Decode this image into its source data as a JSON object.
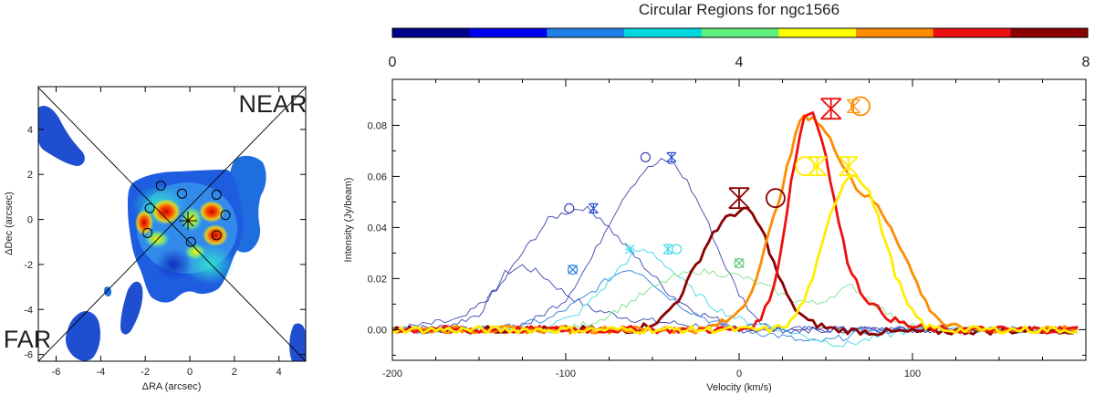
{
  "chart_data": [
    {
      "type": "heatmap",
      "xlabel": "ΔRA (arcsec)",
      "ylabel": "ΔDec (arcsec)",
      "xlim": [
        -6.8,
        5.2
      ],
      "ylim": [
        -6.3,
        5.9
      ],
      "xticks": [
        "-6",
        "-4",
        "-2",
        "0",
        "2",
        "4"
      ],
      "xtick_values": [
        -6,
        -4,
        -2,
        0,
        2,
        4
      ],
      "yticks": [
        "-6",
        "-4",
        "-2",
        "0",
        "2",
        "4"
      ],
      "ytick_values": [
        -6,
        -4,
        -2,
        0,
        2,
        4
      ],
      "annotations": {
        "near": "NEAR",
        "far": "FAR"
      },
      "apertures": [
        {
          "x": -1.3,
          "y": 1.5
        },
        {
          "x": -0.35,
          "y": 1.15
        },
        {
          "x": 1.2,
          "y": 1.1
        },
        {
          "x": -1.8,
          "y": 0.5
        },
        {
          "x": 1.6,
          "y": 0.2
        },
        {
          "x": -1.9,
          "y": -0.6
        },
        {
          "x": 0.05,
          "y": -1.0
        },
        {
          "x": 1.2,
          "y": -0.7
        }
      ]
    },
    {
      "type": "line",
      "title": "Circular Regions for ngc1566",
      "colorbar": {
        "labels": [
          "0",
          "4",
          "8"
        ],
        "min": 0,
        "max": 8,
        "colors": [
          "#00008b",
          "#0000ee",
          "#1e7fe6",
          "#00d8e0",
          "#5ef07a",
          "#ffff00",
          "#ff8c00",
          "#ee1010",
          "#8b0000"
        ]
      },
      "xlabel": "Velocity (km/s)",
      "ylabel": "Intensity (Jy/beam)",
      "xlim": [
        -200,
        200
      ],
      "ylim": [
        -0.012,
        0.098
      ],
      "xticks": [
        "-200",
        "-100",
        "0",
        "100"
      ],
      "xtick_values": [
        -200,
        -100,
        0,
        100
      ],
      "yticks": [
        "0.00",
        "0.02",
        "0.04",
        "0.06",
        "0.08"
      ],
      "ytick_values": [
        0,
        0.02,
        0.04,
        0.06,
        0.08
      ],
      "series": [
        {
          "name": "region-blue-a",
          "color": "#3a45b0",
          "thick": false,
          "points": [
            [
              -200,
              0.0
            ],
            [
              -170,
              0.001
            ],
            [
              -150,
              0.006
            ],
            [
              -135,
              0.022
            ],
            [
              -125,
              0.025
            ],
            [
              -115,
              0.022
            ],
            [
              -100,
              0.014
            ],
            [
              -85,
              0.008
            ],
            [
              -60,
              0.004
            ],
            [
              -30,
              0.002
            ],
            [
              0,
              0.0
            ],
            [
              50,
              0.0
            ],
            [
              200,
              0.0
            ]
          ]
        },
        {
          "name": "region-blue-b",
          "color": "#3a45b0",
          "thick": false,
          "points": [
            [
              -200,
              0.0
            ],
            [
              -160,
              0.004
            ],
            [
              -140,
              0.015
            ],
            [
              -125,
              0.03
            ],
            [
              -110,
              0.043
            ],
            [
              -100,
              0.046
            ],
            [
              -90,
              0.048
            ],
            [
              -80,
              0.044
            ],
            [
              -70,
              0.036
            ],
            [
              -55,
              0.025
            ],
            [
              -40,
              0.014
            ],
            [
              -25,
              0.007
            ],
            [
              -5,
              0.002
            ],
            [
              20,
              0.0
            ],
            [
              200,
              0.0
            ]
          ]
        },
        {
          "name": "region-blue-c",
          "color": "#3a45b0",
          "thick": false,
          "points": [
            [
              -200,
              0.0
            ],
            [
              -140,
              0.0
            ],
            [
              -120,
              0.003
            ],
            [
              -100,
              0.012
            ],
            [
              -85,
              0.028
            ],
            [
              -75,
              0.042
            ],
            [
              -65,
              0.054
            ],
            [
              -55,
              0.062
            ],
            [
              -45,
              0.066
            ],
            [
              -38,
              0.065
            ],
            [
              -30,
              0.058
            ],
            [
              -20,
              0.045
            ],
            [
              -10,
              0.028
            ],
            [
              0,
              0.014
            ],
            [
              10,
              0.004
            ],
            [
              25,
              0.0
            ],
            [
              200,
              0.0
            ]
          ]
        },
        {
          "name": "region-blue-d",
          "color": "#2a7fe0",
          "thick": false,
          "points": [
            [
              -200,
              0.0
            ],
            [
              -140,
              0.0
            ],
            [
              -110,
              0.004
            ],
            [
              -90,
              0.012
            ],
            [
              -75,
              0.02
            ],
            [
              -65,
              0.024
            ],
            [
              -55,
              0.022
            ],
            [
              -45,
              0.015
            ],
            [
              -30,
              0.008
            ],
            [
              -15,
              0.003
            ],
            [
              0,
              0.0
            ],
            [
              20,
              -0.002
            ],
            [
              40,
              -0.005
            ],
            [
              55,
              -0.004
            ],
            [
              70,
              -0.001
            ],
            [
              90,
              0.0
            ],
            [
              200,
              0.0
            ]
          ]
        },
        {
          "name": "region-cyan",
          "color": "#40d8e8",
          "thick": false,
          "points": [
            [
              -200,
              0.0
            ],
            [
              -120,
              0.0
            ],
            [
              -95,
              0.005
            ],
            [
              -80,
              0.015
            ],
            [
              -68,
              0.025
            ],
            [
              -58,
              0.031
            ],
            [
              -50,
              0.03
            ],
            [
              -40,
              0.024
            ],
            [
              -28,
              0.016
            ],
            [
              -15,
              0.009
            ],
            [
              0,
              0.004
            ],
            [
              20,
              0.001
            ],
            [
              40,
              -0.003
            ],
            [
              60,
              -0.006
            ],
            [
              80,
              -0.003
            ],
            [
              100,
              0.0
            ],
            [
              200,
              0.0
            ]
          ]
        },
        {
          "name": "region-green",
          "color": "#7fe08a",
          "thick": false,
          "points": [
            [
              -200,
              0.0
            ],
            [
              -100,
              0.0
            ],
            [
              -80,
              0.004
            ],
            [
              -60,
              0.012
            ],
            [
              -40,
              0.02
            ],
            [
              -25,
              0.023
            ],
            [
              -10,
              0.022
            ],
            [
              0,
              0.021
            ],
            [
              15,
              0.017
            ],
            [
              30,
              0.012
            ],
            [
              45,
              0.01
            ],
            [
              55,
              0.014
            ],
            [
              65,
              0.017
            ],
            [
              75,
              0.012
            ],
            [
              90,
              0.004
            ],
            [
              110,
              0.0
            ],
            [
              200,
              0.0
            ]
          ]
        },
        {
          "name": "region-darkred",
          "color": "#8b0000",
          "thick": true,
          "points": [
            [
              -200,
              0.0
            ],
            [
              -60,
              0.0
            ],
            [
              -45,
              0.004
            ],
            [
              -35,
              0.012
            ],
            [
              -25,
              0.025
            ],
            [
              -15,
              0.038
            ],
            [
              -5,
              0.045
            ],
            [
              3,
              0.047
            ],
            [
              8,
              0.045
            ],
            [
              15,
              0.036
            ],
            [
              22,
              0.022
            ],
            [
              30,
              0.01
            ],
            [
              40,
              0.003
            ],
            [
              55,
              0.0
            ],
            [
              80,
              -0.001
            ],
            [
              200,
              0.0
            ]
          ]
        },
        {
          "name": "region-orange",
          "color": "#ff8c00",
          "thick": true,
          "points": [
            [
              -200,
              0.0
            ],
            [
              -20,
              0.0
            ],
            [
              -5,
              0.004
            ],
            [
              5,
              0.012
            ],
            [
              12,
              0.025
            ],
            [
              20,
              0.044
            ],
            [
              28,
              0.064
            ],
            [
              35,
              0.082
            ],
            [
              42,
              0.084
            ],
            [
              50,
              0.077
            ],
            [
              60,
              0.065
            ],
            [
              68,
              0.055
            ],
            [
              78,
              0.05
            ],
            [
              88,
              0.04
            ],
            [
              98,
              0.025
            ],
            [
              108,
              0.01
            ],
            [
              118,
              0.002
            ],
            [
              130,
              0.0
            ],
            [
              200,
              0.0
            ]
          ]
        },
        {
          "name": "region-red",
          "color": "#ee1010",
          "thick": true,
          "points": [
            [
              -200,
              0.0
            ],
            [
              0,
              0.0
            ],
            [
              10,
              0.002
            ],
            [
              18,
              0.012
            ],
            [
              24,
              0.03
            ],
            [
              30,
              0.058
            ],
            [
              37,
              0.083
            ],
            [
              42,
              0.086
            ],
            [
              48,
              0.075
            ],
            [
              55,
              0.05
            ],
            [
              62,
              0.028
            ],
            [
              70,
              0.015
            ],
            [
              78,
              0.009
            ],
            [
              88,
              0.004
            ],
            [
              100,
              0.001
            ],
            [
              115,
              0.0
            ],
            [
              200,
              0.0
            ]
          ]
        },
        {
          "name": "region-yellow",
          "color": "#ffee00",
          "thick": true,
          "points": [
            [
              -200,
              0.0
            ],
            [
              20,
              0.0
            ],
            [
              30,
              0.003
            ],
            [
              38,
              0.012
            ],
            [
              46,
              0.028
            ],
            [
              54,
              0.048
            ],
            [
              62,
              0.06
            ],
            [
              68,
              0.061
            ],
            [
              75,
              0.054
            ],
            [
              82,
              0.04
            ],
            [
              90,
              0.022
            ],
            [
              98,
              0.008
            ],
            [
              108,
              0.001
            ],
            [
              120,
              0.0
            ],
            [
              200,
              0.0
            ]
          ]
        }
      ],
      "markers": [
        {
          "name": "blue-b-circle",
          "shape": "circle",
          "color": "#3a45b0",
          "x": -98,
          "y": 0.0475,
          "size": 5
        },
        {
          "name": "blue-b-star",
          "shape": "xstar",
          "color": "#2a4fd0",
          "x": -84,
          "y": 0.0475,
          "size": 5
        },
        {
          "name": "blue-c-circle",
          "shape": "circle",
          "color": "#3a45b0",
          "x": -54,
          "y": 0.0675,
          "size": 5
        },
        {
          "name": "blue-c-star",
          "shape": "xstar",
          "color": "#2a4fd0",
          "x": -39,
          "y": 0.0675,
          "size": 5
        },
        {
          "name": "blue-d-marker",
          "shape": "circlex",
          "color": "#2a7fe0",
          "x": -96,
          "y": 0.0235,
          "size": 5
        },
        {
          "name": "cyan-star-a",
          "shape": "star",
          "color": "#40d8e8",
          "x": -63,
          "y": 0.0315,
          "size": 5
        },
        {
          "name": "cyan-star-b",
          "shape": "xstar",
          "color": "#40d8e8",
          "x": -41,
          "y": 0.0315,
          "size": 5
        },
        {
          "name": "cyan-circle",
          "shape": "circle",
          "color": "#40d8e8",
          "x": -36,
          "y": 0.0315,
          "size": 5
        },
        {
          "name": "green-marker",
          "shape": "circlex",
          "color": "#5ec87a",
          "x": 0,
          "y": 0.026,
          "size": 5
        },
        {
          "name": "darkred-star",
          "shape": "xstar",
          "color": "#8b0000",
          "x": 0,
          "y": 0.0515,
          "size": 11
        },
        {
          "name": "darkred-circle",
          "shape": "circle",
          "color": "#8b0000",
          "x": 21,
          "y": 0.0515,
          "size": 10
        },
        {
          "name": "red-star",
          "shape": "xstar",
          "color": "#ee1010",
          "x": 53,
          "y": 0.0865,
          "size": 11
        },
        {
          "name": "orange-circle",
          "shape": "circle",
          "color": "#ff8c00",
          "x": 70,
          "y": 0.0875,
          "size": 10
        },
        {
          "name": "orange-star",
          "shape": "xstar",
          "color": "#ff8c00",
          "x": 66,
          "y": 0.0875,
          "size": 7
        },
        {
          "name": "yellow-circle",
          "shape": "circle",
          "color": "#ffee00",
          "x": 38,
          "y": 0.064,
          "size": 10
        },
        {
          "name": "yellow-box-x",
          "shape": "xstar",
          "color": "#ffee00",
          "x": 45,
          "y": 0.064,
          "size": 10
        },
        {
          "name": "yellow-star",
          "shape": "xstar",
          "color": "#ffee00",
          "x": 63,
          "y": 0.064,
          "size": 10
        }
      ]
    }
  ]
}
